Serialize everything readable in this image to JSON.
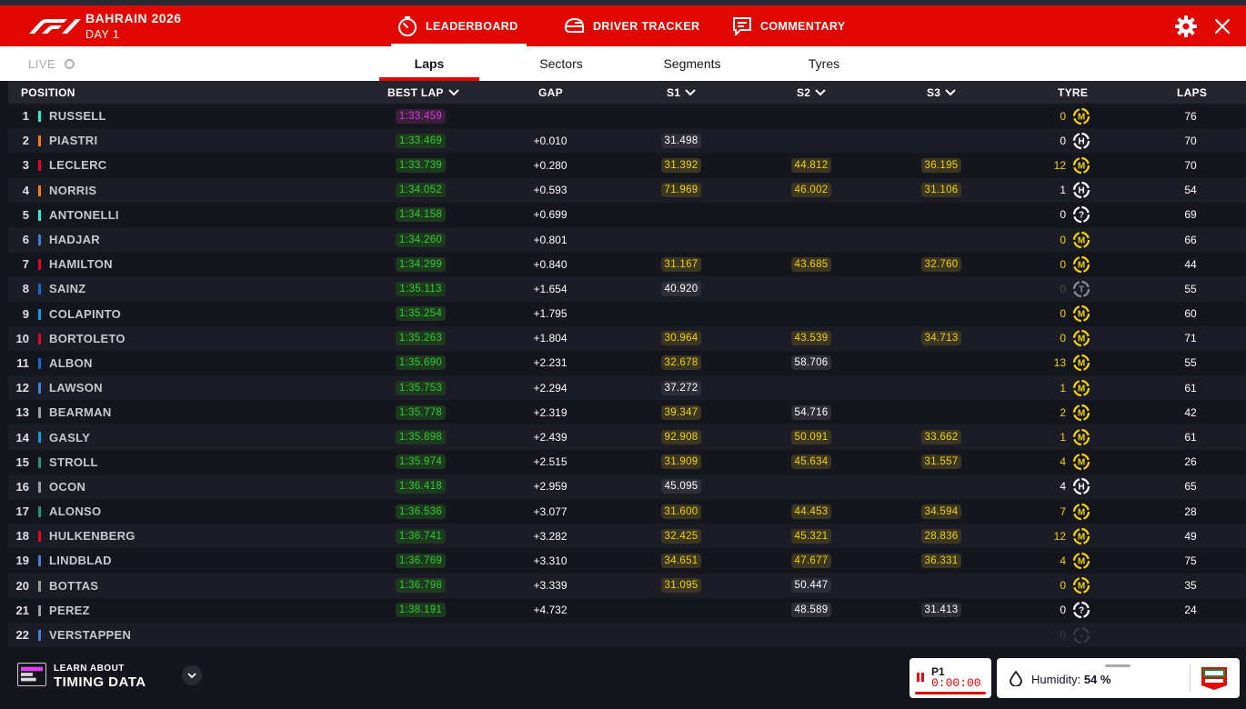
{
  "header": {
    "event_title": "BAHRAIN 2026",
    "event_sub": "DAY 1",
    "tabs": [
      {
        "label": "LEADERBOARD",
        "icon": "stopwatch-icon",
        "active": true
      },
      {
        "label": "DRIVER TRACKER",
        "icon": "helmet-icon",
        "active": false
      },
      {
        "label": "COMMENTARY",
        "icon": "chat-icon",
        "active": false
      }
    ],
    "settings_icon": "gear-icon",
    "close_icon": "close-icon",
    "accent": "#e10600"
  },
  "subnav": {
    "live_label": "LIVE",
    "tabs": [
      {
        "label": "Laps",
        "active": true
      },
      {
        "label": "Sectors",
        "active": false
      },
      {
        "label": "Segments",
        "active": false
      },
      {
        "label": "Tyres",
        "active": false
      }
    ]
  },
  "table": {
    "headers": {
      "position": "POSITION",
      "best_lap": "BEST LAP",
      "gap": "GAP",
      "s1": "S1",
      "s2": "S2",
      "s3": "S3",
      "tyre": "TYRE",
      "laps": "LAPS"
    },
    "rows": [
      {
        "pos": "1",
        "driver": "RUSSELL",
        "team_color": "#27f4d2",
        "best": "1:33.459",
        "best_type": "purple",
        "gap": "",
        "s1": "",
        "s1_type": "",
        "s2": "",
        "s2_type": "",
        "s3": "",
        "s3_type": "",
        "tyre_age": "0",
        "tyre_age_color": "#f5d300",
        "tyre": "M",
        "tyre_color": "#f5d300",
        "laps": "76"
      },
      {
        "pos": "2",
        "driver": "PIASTRI",
        "team_color": "#ff8000",
        "best": "1:33.469",
        "best_type": "green",
        "gap": "+0.010",
        "s1": "31.498",
        "s1_type": "white",
        "s2": "",
        "s2_type": "",
        "s3": "",
        "s3_type": "",
        "tyre_age": "0",
        "tyre_age_color": "#ffffff",
        "tyre": "H",
        "tyre_color": "#ffffff",
        "laps": "70"
      },
      {
        "pos": "3",
        "driver": "LECLERC",
        "team_color": "#e8002d",
        "best": "1:33.739",
        "best_type": "green",
        "gap": "+0.280",
        "s1": "31.392",
        "s1_type": "yellow",
        "s2": "44.812",
        "s2_type": "yellow",
        "s3": "36.195",
        "s3_type": "yellow",
        "tyre_age": "12",
        "tyre_age_color": "#f5d300",
        "tyre": "M",
        "tyre_color": "#f5d300",
        "laps": "70"
      },
      {
        "pos": "4",
        "driver": "NORRIS",
        "team_color": "#ff8000",
        "best": "1:34.052",
        "best_type": "green",
        "gap": "+0.593",
        "s1": "71.969",
        "s1_type": "yellow",
        "s2": "46.002",
        "s2_type": "yellow",
        "s3": "31.106",
        "s3_type": "yellow",
        "tyre_age": "1",
        "tyre_age_color": "#ffffff",
        "tyre": "H",
        "tyre_color": "#ffffff",
        "laps": "54"
      },
      {
        "pos": "5",
        "driver": "ANTONELLI",
        "team_color": "#27f4d2",
        "best": "1:34.158",
        "best_type": "green",
        "gap": "+0.699",
        "s1": "",
        "s1_type": "",
        "s2": "",
        "s2_type": "",
        "s3": "",
        "s3_type": "",
        "tyre_age": "0",
        "tyre_age_color": "#ffffff",
        "tyre": "?",
        "tyre_color": "#ffffff",
        "laps": "69"
      },
      {
        "pos": "6",
        "driver": "HADJAR",
        "team_color": "#4781d7",
        "best": "1:34.260",
        "best_type": "green",
        "gap": "+0.801",
        "s1": "",
        "s1_type": "",
        "s2": "",
        "s2_type": "",
        "s3": "",
        "s3_type": "",
        "tyre_age": "0",
        "tyre_age_color": "#f5d300",
        "tyre": "M",
        "tyre_color": "#f5d300",
        "laps": "66"
      },
      {
        "pos": "7",
        "driver": "HAMILTON",
        "team_color": "#e8002d",
        "best": "1:34.299",
        "best_type": "green",
        "gap": "+0.840",
        "s1": "31.167",
        "s1_type": "yellow",
        "s2": "43.685",
        "s2_type": "yellow",
        "s3": "32.760",
        "s3_type": "yellow",
        "tyre_age": "0",
        "tyre_age_color": "#f5d300",
        "tyre": "M",
        "tyre_color": "#f5d300",
        "laps": "44"
      },
      {
        "pos": "8",
        "driver": "SAINZ",
        "team_color": "#1868db",
        "best": "1:35.113",
        "best_type": "green",
        "gap": "+1.654",
        "s1": "40.920",
        "s1_type": "white",
        "s2": "",
        "s2_type": "",
        "s3": "",
        "s3_type": "",
        "tyre_age": "0",
        "tyre_age_color": "#4a4a55",
        "tyre": "T",
        "tyre_color": "#8a8a95",
        "laps": "55"
      },
      {
        "pos": "9",
        "driver": "COLAPINTO",
        "team_color": "#00a1e8",
        "best": "1:35.254",
        "best_type": "green",
        "gap": "+1.795",
        "s1": "",
        "s1_type": "",
        "s2": "",
        "s2_type": "",
        "s3": "",
        "s3_type": "",
        "tyre_age": "0",
        "tyre_age_color": "#f5d300",
        "tyre": "M",
        "tyre_color": "#f5d300",
        "laps": "60"
      },
      {
        "pos": "10",
        "driver": "BORTOLETO",
        "team_color": "#e8002d",
        "best": "1:35.263",
        "best_type": "green",
        "gap": "+1.804",
        "s1": "30.964",
        "s1_type": "yellow",
        "s2": "43.539",
        "s2_type": "yellow",
        "s3": "34.713",
        "s3_type": "yellow",
        "tyre_age": "0",
        "tyre_age_color": "#f5d300",
        "tyre": "M",
        "tyre_color": "#f5d300",
        "laps": "71"
      },
      {
        "pos": "11",
        "driver": "ALBON",
        "team_color": "#1868db",
        "best": "1:35.690",
        "best_type": "green",
        "gap": "+2.231",
        "s1": "32.678",
        "s1_type": "yellow",
        "s2": "58.706",
        "s2_type": "white",
        "s3": "",
        "s3_type": "",
        "tyre_age": "13",
        "tyre_age_color": "#f5d300",
        "tyre": "M",
        "tyre_color": "#f5d300",
        "laps": "55"
      },
      {
        "pos": "12",
        "driver": "LAWSON",
        "team_color": "#4781d7",
        "best": "1:35.753",
        "best_type": "green",
        "gap": "+2.294",
        "s1": "37.272",
        "s1_type": "white",
        "s2": "",
        "s2_type": "",
        "s3": "",
        "s3_type": "",
        "tyre_age": "1",
        "tyre_age_color": "#f5d300",
        "tyre": "M",
        "tyre_color": "#f5d300",
        "laps": "61"
      },
      {
        "pos": "13",
        "driver": "BEARMAN",
        "team_color": "#9c9fa2",
        "best": "1:35.778",
        "best_type": "green",
        "gap": "+2.319",
        "s1": "39.347",
        "s1_type": "yellow",
        "s2": "54.716",
        "s2_type": "white",
        "s3": "",
        "s3_type": "",
        "tyre_age": "2",
        "tyre_age_color": "#f5d300",
        "tyre": "M",
        "tyre_color": "#f5d300",
        "laps": "42"
      },
      {
        "pos": "14",
        "driver": "GASLY",
        "team_color": "#00a1e8",
        "best": "1:35.898",
        "best_type": "green",
        "gap": "+2.439",
        "s1": "92.908",
        "s1_type": "yellow",
        "s2": "50.091",
        "s2_type": "yellow",
        "s3": "33.662",
        "s3_type": "yellow",
        "tyre_age": "1",
        "tyre_age_color": "#f5d300",
        "tyre": "M",
        "tyre_color": "#f5d300",
        "laps": "61"
      },
      {
        "pos": "15",
        "driver": "STROLL",
        "team_color": "#229971",
        "best": "1:35.974",
        "best_type": "green",
        "gap": "+2.515",
        "s1": "31.909",
        "s1_type": "yellow",
        "s2": "45.634",
        "s2_type": "yellow",
        "s3": "31.557",
        "s3_type": "yellow",
        "tyre_age": "4",
        "tyre_age_color": "#f5d300",
        "tyre": "M",
        "tyre_color": "#f5d300",
        "laps": "26"
      },
      {
        "pos": "16",
        "driver": "OCON",
        "team_color": "#9c9fa2",
        "best": "1:36.418",
        "best_type": "green",
        "gap": "+2.959",
        "s1": "45.095",
        "s1_type": "white",
        "s2": "",
        "s2_type": "",
        "s3": "",
        "s3_type": "",
        "tyre_age": "4",
        "tyre_age_color": "#ffffff",
        "tyre": "H",
        "tyre_color": "#ffffff",
        "laps": "65"
      },
      {
        "pos": "17",
        "driver": "ALONSO",
        "team_color": "#229971",
        "best": "1:36.536",
        "best_type": "green",
        "gap": "+3.077",
        "s1": "31.600",
        "s1_type": "yellow",
        "s2": "44.453",
        "s2_type": "yellow",
        "s3": "34.594",
        "s3_type": "yellow",
        "tyre_age": "7",
        "tyre_age_color": "#f5d300",
        "tyre": "M",
        "tyre_color": "#f5d300",
        "laps": "28"
      },
      {
        "pos": "18",
        "driver": "HULKENBERG",
        "team_color": "#e8002d",
        "best": "1:36.741",
        "best_type": "green",
        "gap": "+3.282",
        "s1": "32.425",
        "s1_type": "yellow",
        "s2": "45.321",
        "s2_type": "yellow",
        "s3": "28.836",
        "s3_type": "yellow",
        "tyre_age": "12",
        "tyre_age_color": "#f5d300",
        "tyre": "M",
        "tyre_color": "#f5d300",
        "laps": "49"
      },
      {
        "pos": "19",
        "driver": "LINDBLAD",
        "team_color": "#4781d7",
        "best": "1:36.769",
        "best_type": "green",
        "gap": "+3.310",
        "s1": "34.651",
        "s1_type": "yellow",
        "s2": "47.677",
        "s2_type": "yellow",
        "s3": "36.331",
        "s3_type": "yellow",
        "tyre_age": "4",
        "tyre_age_color": "#f5d300",
        "tyre": "M",
        "tyre_color": "#f5d300",
        "laps": "75"
      },
      {
        "pos": "20",
        "driver": "BOTTAS",
        "team_color": "#9c9fa2",
        "best": "1:36.798",
        "best_type": "green",
        "gap": "+3.339",
        "s1": "31.095",
        "s1_type": "yellow",
        "s2": "50.447",
        "s2_type": "white",
        "s3": "",
        "s3_type": "",
        "tyre_age": "0",
        "tyre_age_color": "#f5d300",
        "tyre": "M",
        "tyre_color": "#f5d300",
        "laps": "35"
      },
      {
        "pos": "21",
        "driver": "PEREZ",
        "team_color": "#9c9fa2",
        "best": "1:38.191",
        "best_type": "green",
        "gap": "+4.732",
        "s1": "",
        "s1_type": "",
        "s2": "48.589",
        "s2_type": "white",
        "s3": "31.413",
        "s3_type": "white",
        "tyre_age": "0",
        "tyre_age_color": "#ffffff",
        "tyre": "?",
        "tyre_color": "#ffffff",
        "laps": "24"
      },
      {
        "pos": "22",
        "driver": "VERSTAPPEN",
        "team_color": "#4781d7",
        "best": "",
        "best_type": "",
        "gap": "",
        "s1": "",
        "s1_type": "",
        "s2": "",
        "s2_type": "",
        "s3": "",
        "s3_type": "",
        "tyre_age": "0",
        "tyre_age_color": "#3a3a45",
        "tyre": "-",
        "tyre_color": "#3a3a45",
        "laps": ""
      }
    ]
  },
  "footer": {
    "learn_small": "LEARN ABOUT",
    "learn_big": "TIMING DATA",
    "p1_label": "P1",
    "p1_time": "0:00:00",
    "humidity_label": "Humidity:",
    "humidity_value": "54 %"
  }
}
